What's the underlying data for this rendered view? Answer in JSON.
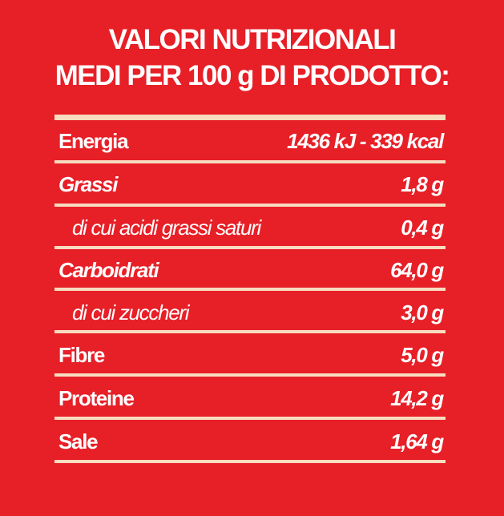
{
  "header": {
    "title": [
      "VALORI NUTRIZIONALI",
      "MEDI PER 100 g DI PRODOTTO:"
    ]
  },
  "table": {
    "rows": [
      [
        "Energia",
        "1436 kJ - 339 kcal"
      ],
      [
        "Grassi",
        "1,8 g"
      ],
      [
        "di cui acidi grassi saturi",
        "0,4 g"
      ],
      [
        "Carboidrati",
        "64,0 g"
      ],
      [
        "di cui zuccheri",
        "3,0 g"
      ],
      [
        "Fibre",
        "5,0 g"
      ],
      [
        "Proteine",
        "14,2 g"
      ],
      [
        "Sale",
        "1,64 g"
      ]
    ]
  }
}
